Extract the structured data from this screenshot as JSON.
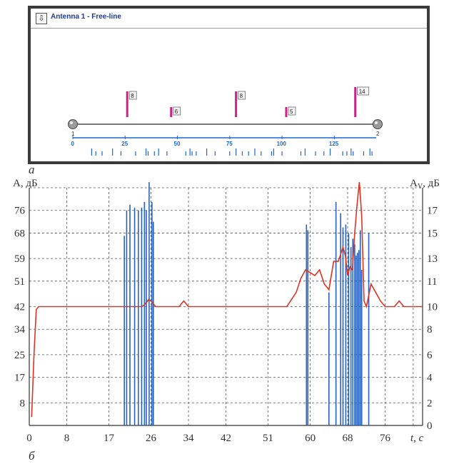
{
  "panel_a": {
    "title": "Antenna 1 - Free-line",
    "download_icon": "download-arrow-icon",
    "caption": "a",
    "line_ends": [
      "1",
      "2"
    ],
    "ruler_ticks": [
      "0",
      "25",
      "50",
      "75",
      "100",
      "125"
    ],
    "ruler_max": 145,
    "markers": [
      {
        "pos": 26,
        "label": "8"
      },
      {
        "pos": 47,
        "label": "6"
      },
      {
        "pos": 78,
        "label": "8"
      },
      {
        "pos": 102,
        "label": "5"
      },
      {
        "pos": 135,
        "label": "14"
      }
    ],
    "small_ticks": [
      9,
      11,
      14,
      19,
      23,
      30,
      35,
      36,
      39,
      41,
      45,
      54,
      56,
      57,
      59,
      64,
      68,
      75,
      78,
      81,
      84,
      87,
      90,
      95,
      96,
      100,
      109,
      111,
      116,
      120,
      123,
      129,
      131,
      133,
      134,
      139,
      142,
      143
    ],
    "accent_color": "#2266cc",
    "marker_color": "#cc2288"
  },
  "chart_data": {
    "type": "line",
    "caption": "б",
    "ylabel_left": "A, дБ",
    "ylabel_right": "A",
    "ylabel_right_sub": "V",
    "ylabel_right_unit": ", дБ",
    "xlabel": "t, c",
    "x_ticks": [
      "0",
      "8",
      "17",
      "26",
      "34",
      "42",
      "51",
      "60",
      "68",
      "76"
    ],
    "y_left_ticks": [
      "8",
      "17",
      "25",
      "34",
      "42",
      "51",
      "59",
      "68",
      "76"
    ],
    "y_right_ticks": [
      "0",
      "2",
      "4",
      "6",
      "8",
      "10",
      "11",
      "13",
      "15",
      "17"
    ],
    "xlim": [
      0,
      84
    ],
    "ylim_left": [
      0,
      84
    ],
    "grid": true,
    "series": [
      {
        "color": "#dd3322",
        "x": [
          0.5,
          1.0,
          1.5,
          2,
          10,
          20,
          24,
          24.5,
          25,
          25.5,
          26,
          26.5,
          27,
          28,
          32,
          33,
          34,
          40,
          50,
          55,
          57,
          58,
          59,
          60,
          61,
          62,
          63,
          64,
          65,
          66,
          67,
          67.5,
          68,
          68.5,
          69,
          69.5,
          70,
          70.5,
          71,
          71.5,
          72,
          72.5,
          73,
          74,
          75,
          76,
          78,
          79,
          80,
          84
        ],
        "y": [
          3,
          25,
          41,
          42,
          42,
          42,
          42,
          42.5,
          43.5,
          44.5,
          44,
          43,
          42,
          42,
          42,
          44,
          42,
          42,
          42,
          42,
          47,
          52,
          55,
          54,
          53,
          55,
          50,
          48,
          58,
          58,
          63,
          60,
          53,
          56,
          55,
          68,
          78,
          86,
          74,
          44,
          42,
          46,
          50,
          47,
          44,
          42,
          42,
          44,
          42,
          42
        ]
      }
    ],
    "bars": [
      {
        "x": 20.3,
        "y": 67
      },
      {
        "x": 20.8,
        "y": 76
      },
      {
        "x": 21.5,
        "y": 78
      },
      {
        "x": 22.5,
        "y": 77
      },
      {
        "x": 23.3,
        "y": 76
      },
      {
        "x": 24.0,
        "y": 77
      },
      {
        "x": 24.6,
        "y": 79
      },
      {
        "x": 25.0,
        "y": 76
      },
      {
        "x": 25.6,
        "y": 86
      },
      {
        "x": 26.2,
        "y": 79
      },
      {
        "x": 26.5,
        "y": 72
      },
      {
        "x": 59.2,
        "y": 71
      },
      {
        "x": 59.5,
        "y": 69
      },
      {
        "x": 64.0,
        "y": 47
      },
      {
        "x": 65.5,
        "y": 79
      },
      {
        "x": 66.5,
        "y": 75
      },
      {
        "x": 67.0,
        "y": 70
      },
      {
        "x": 67.6,
        "y": 71
      },
      {
        "x": 68.2,
        "y": 68
      },
      {
        "x": 68.7,
        "y": 63
      },
      {
        "x": 69.1,
        "y": 66
      },
      {
        "x": 69.5,
        "y": 64
      },
      {
        "x": 69.8,
        "y": 60
      },
      {
        "x": 70.1,
        "y": 61
      },
      {
        "x": 70.4,
        "y": 62
      },
      {
        "x": 70.7,
        "y": 69
      },
      {
        "x": 71.0,
        "y": 55
      },
      {
        "x": 72.5,
        "y": 68
      }
    ],
    "bar_color": "#2a62b8"
  }
}
